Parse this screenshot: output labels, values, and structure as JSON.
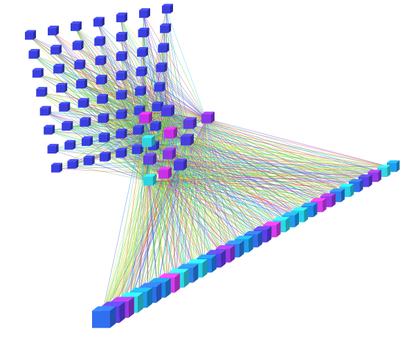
{
  "diagram": {
    "type": "3d-neural-network-visualization",
    "layers": [
      {
        "role": "input-grid",
        "rows": 8,
        "cols": 7,
        "node_color": "#3a3fe0"
      },
      {
        "role": "hidden",
        "count": 12,
        "colors": [
          "#c830e8",
          "#4a3ee0",
          "#6040e0",
          "#8a38e6",
          "#2fd4e0"
        ]
      },
      {
        "role": "output-row",
        "count": 32,
        "colors": [
          "#2f6ff0",
          "#28d0ec",
          "#1f9ef0",
          "#2d80ec",
          "#30d8ea",
          "#9a38e8",
          "#d83cf0",
          "#5a40e8",
          "#1e88ee"
        ]
      }
    ],
    "connection_colors": [
      "#2ed62e",
      "#e0d020",
      "#e63a2e",
      "#1a6ce8",
      "#20c8d8",
      "#a0e020",
      "#7a2ee0"
    ],
    "background": "#ffffff"
  }
}
